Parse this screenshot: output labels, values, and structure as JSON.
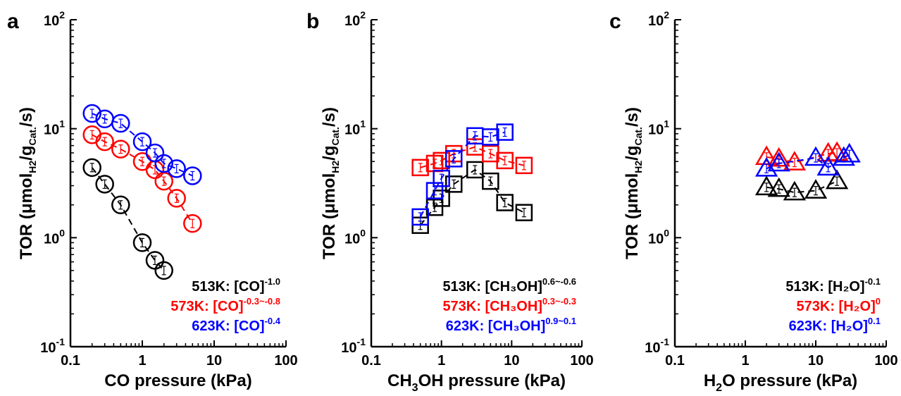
{
  "chart_data": [
    {
      "type": "scatter",
      "panel_label": "a",
      "xlabel": "CO pressure (kPa)",
      "ylabel": {
        "main": "TOR (μmol",
        "sub": "H2",
        "mid": "/g",
        "sub2": "Cat.",
        "tail": "/s)"
      },
      "xscale": "log",
      "yscale": "log",
      "xlim": [
        0.1,
        100
      ],
      "ylim": [
        0.1,
        100
      ],
      "xticks": [
        "0.1",
        "1",
        "10",
        "100"
      ],
      "yticks": [
        {
          "base": "10",
          "exp": "-1"
        },
        {
          "base": "10",
          "exp": "0"
        },
        {
          "base": "10",
          "exp": "1"
        },
        {
          "base": "10",
          "exp": "2"
        }
      ],
      "marker": "circle",
      "series": [
        {
          "color": "#000000",
          "x": [
            0.2,
            0.3,
            0.5,
            1.0,
            1.5,
            2.0
          ],
          "y": [
            4.4,
            3.1,
            2.0,
            0.9,
            0.62,
            0.5
          ]
        },
        {
          "color": "#ff0000",
          "x": [
            0.2,
            0.3,
            0.5,
            1.0,
            1.5,
            2.0,
            3.0,
            5.0
          ],
          "y": [
            8.8,
            7.6,
            6.5,
            5.0,
            4.2,
            3.3,
            2.3,
            1.35
          ]
        },
        {
          "color": "#0000ff",
          "x": [
            0.2,
            0.3,
            0.5,
            1.0,
            1.5,
            2.0,
            3.0,
            5.0
          ],
          "y": [
            13.8,
            12.3,
            11.2,
            7.6,
            6.0,
            4.8,
            4.3,
            3.7
          ]
        }
      ],
      "annotations": [
        {
          "color": "#000000",
          "label": "513K: [CO]",
          "exp": "-1.0"
        },
        {
          "color": "#ff0000",
          "label": "573K: [CO]",
          "exp": "-0.3~-0.8"
        },
        {
          "color": "#0000ff",
          "label": "623K: [CO]",
          "exp": "-0.4"
        }
      ]
    },
    {
      "type": "scatter",
      "panel_label": "b",
      "xlabel": {
        "pre": "CH",
        "sub": "3",
        "post": "OH pressure (kPa)"
      },
      "ylabel": {
        "main": "TOR (μmol",
        "sub": "H2",
        "mid": "/g",
        "sub2": "Cat.",
        "tail": "/s)"
      },
      "xscale": "log",
      "yscale": "log",
      "xlim": [
        0.1,
        100
      ],
      "ylim": [
        0.1,
        100
      ],
      "xticks": [
        "0.1",
        "1",
        "10",
        "100"
      ],
      "yticks": [
        {
          "base": "10",
          "exp": "-1"
        },
        {
          "base": "10",
          "exp": "0"
        },
        {
          "base": "10",
          "exp": "1"
        },
        {
          "base": "10",
          "exp": "2"
        }
      ],
      "marker": "square",
      "series": [
        {
          "color": "#000000",
          "x": [
            0.5,
            0.8,
            1.0,
            1.5,
            3.0,
            5.0,
            8.0,
            15.0
          ],
          "y": [
            1.3,
            1.9,
            2.3,
            3.1,
            4.2,
            3.3,
            2.1,
            1.7
          ]
        },
        {
          "color": "#ff0000",
          "x": [
            0.5,
            0.8,
            1.0,
            1.5,
            3.0,
            5.0,
            8.0,
            15.0
          ],
          "y": [
            4.4,
            4.8,
            5.1,
            5.9,
            6.8,
            5.9,
            5.1,
            4.6
          ]
        },
        {
          "color": "#0000ff",
          "x": [
            0.5,
            0.8,
            1.0,
            1.5,
            3.0,
            5.0,
            8.0
          ],
          "y": [
            1.55,
            2.7,
            3.5,
            5.3,
            8.6,
            8.4,
            9.3
          ]
        }
      ],
      "annotations": [
        {
          "color": "#000000",
          "label": "513K: [CH₃OH]",
          "exp": "0.6~-0.6"
        },
        {
          "color": "#ff0000",
          "label": "573K: [CH₃OH]",
          "exp": "0.3~-0.3"
        },
        {
          "color": "#0000ff",
          "label": "623K: [CH₃OH]",
          "exp": "0.9~0.1"
        }
      ]
    },
    {
      "type": "scatter",
      "panel_label": "c",
      "xlabel": {
        "pre": "H",
        "sub": "2",
        "post": "O pressure (kPa)"
      },
      "ylabel": {
        "main": "TOR (μmol",
        "sub": "H2",
        "mid": "/g",
        "sub2": "Cat.",
        "tail": "/s)"
      },
      "xscale": "log",
      "yscale": "log",
      "xlim": [
        0.1,
        100
      ],
      "ylim": [
        0.1,
        100
      ],
      "xticks": [
        "0.1",
        "1",
        "10",
        "100"
      ],
      "yticks": [
        {
          "base": "10",
          "exp": "-1"
        },
        {
          "base": "10",
          "exp": "0"
        },
        {
          "base": "10",
          "exp": "1"
        },
        {
          "base": "10",
          "exp": "2"
        }
      ],
      "marker": "triangle",
      "series": [
        {
          "color": "#000000",
          "x": [
            2.0,
            3.0,
            5.0,
            10.0,
            20.0
          ],
          "y": [
            2.9,
            2.8,
            2.6,
            2.7,
            3.3
          ]
        },
        {
          "color": "#ff0000",
          "x": [
            2.0,
            3.0,
            5.0,
            15.0,
            20.0
          ],
          "y": [
            5.5,
            5.3,
            4.9,
            5.9,
            6.0
          ]
        },
        {
          "color": "#0000ff",
          "x": [
            2.0,
            3.0,
            10.0,
            15.0,
            25.0,
            30.0
          ],
          "y": [
            4.3,
            4.8,
            5.4,
            4.4,
            5.4,
            5.8
          ]
        }
      ],
      "annotations": [
        {
          "color": "#000000",
          "label": "513K: [H₂O]",
          "exp": "-0.1"
        },
        {
          "color": "#ff0000",
          "label": "573K: [H₂O]",
          "exp": "0"
        },
        {
          "color": "#0000ff",
          "label": "623K: [H₂O]",
          "exp": "0.1"
        }
      ]
    }
  ]
}
